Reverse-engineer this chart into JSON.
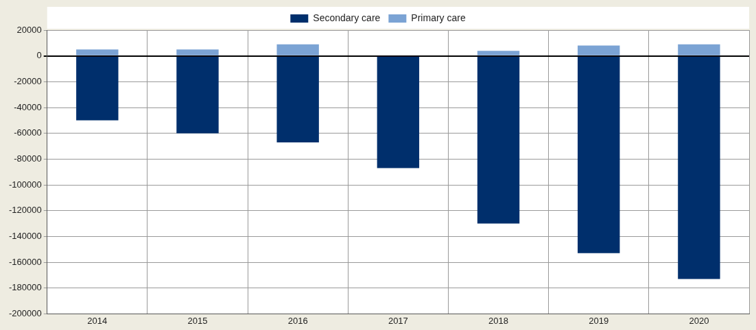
{
  "chart_data": {
    "type": "bar",
    "stacked": true,
    "categories": [
      "2014",
      "2015",
      "2016",
      "2017",
      "2018",
      "2019",
      "2020"
    ],
    "series": [
      {
        "name": "Secondary care",
        "color": "#002f6c",
        "values": [
          -50000,
          -60000,
          -67000,
          -87000,
          -130000,
          -153000,
          -173000
        ]
      },
      {
        "name": "Primary care",
        "color": "#7ba3d4",
        "values": [
          5000,
          5000,
          9000,
          0,
          4000,
          8000,
          9000
        ]
      }
    ],
    "ylim": [
      -200000,
      20000
    ],
    "yticks": [
      -200000,
      -180000,
      -160000,
      -140000,
      -120000,
      -100000,
      -80000,
      -60000,
      -40000,
      -20000,
      0,
      20000
    ],
    "grid": true,
    "legend": "top"
  }
}
